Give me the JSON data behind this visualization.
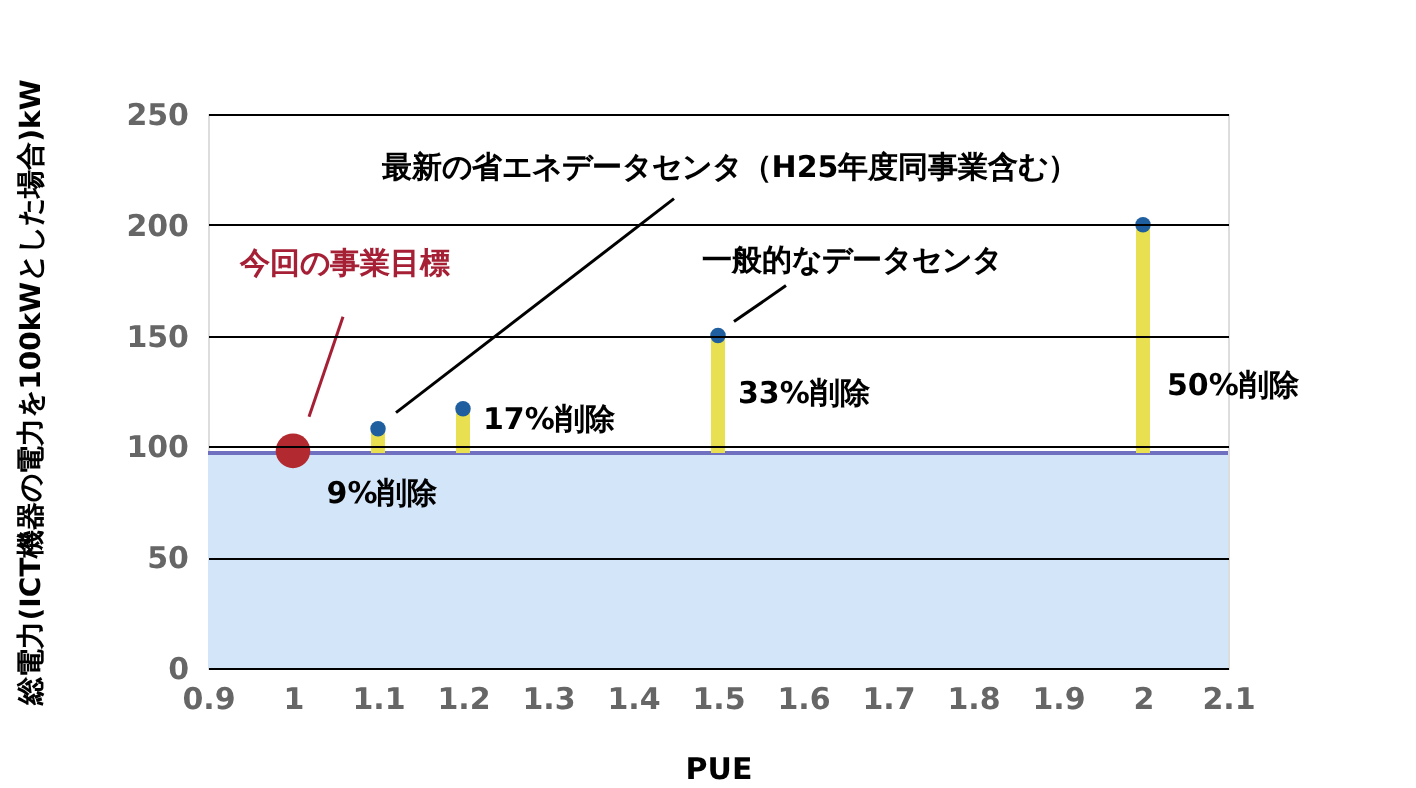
{
  "chart_data": {
    "type": "scatter",
    "xlabel": "PUE",
    "ylabel": "総電力(ICT機器の電力を100kWとした場合)kW",
    "xlim": [
      0.9,
      2.1
    ],
    "xticks": [
      0.9,
      1,
      1.1,
      1.2,
      1.3,
      1.4,
      1.5,
      1.6,
      1.7,
      1.8,
      1.9,
      2,
      2.1
    ],
    "ylim": [
      0,
      250
    ],
    "yticks": [
      0,
      50,
      100,
      150,
      200,
      250
    ],
    "grid": "y",
    "series": [
      {
        "type": "bar",
        "color": "#e8e050",
        "x": [
          1.1,
          1.2,
          1.5,
          2
        ],
        "base": [
          97,
          97,
          97,
          97
        ],
        "values": [
          11,
          20,
          53,
          103
        ]
      },
      {
        "color": "#b22a30",
        "x": [
          1
        ],
        "values": [
          98
        ]
      },
      {
        "color": "#1f5fa0",
        "x": [
          1.1,
          1.2,
          1.5,
          2
        ],
        "values": [
          108,
          117,
          150,
          200
        ]
      }
    ],
    "bands": [
      {
        "axis": "y",
        "from": 0,
        "to": 97,
        "color": "#d3e5f8"
      }
    ],
    "ref_lines": [
      {
        "axis": "y",
        "value": 97,
        "color": "#7070c0"
      }
    ],
    "annotations": [
      "今回の事業目標",
      "最新の省エネデータセンタ（H25年度同事業含む）",
      "一般的なデータセンタ",
      "9%削除",
      "17%削除",
      "33%削除",
      "50%削除"
    ]
  }
}
